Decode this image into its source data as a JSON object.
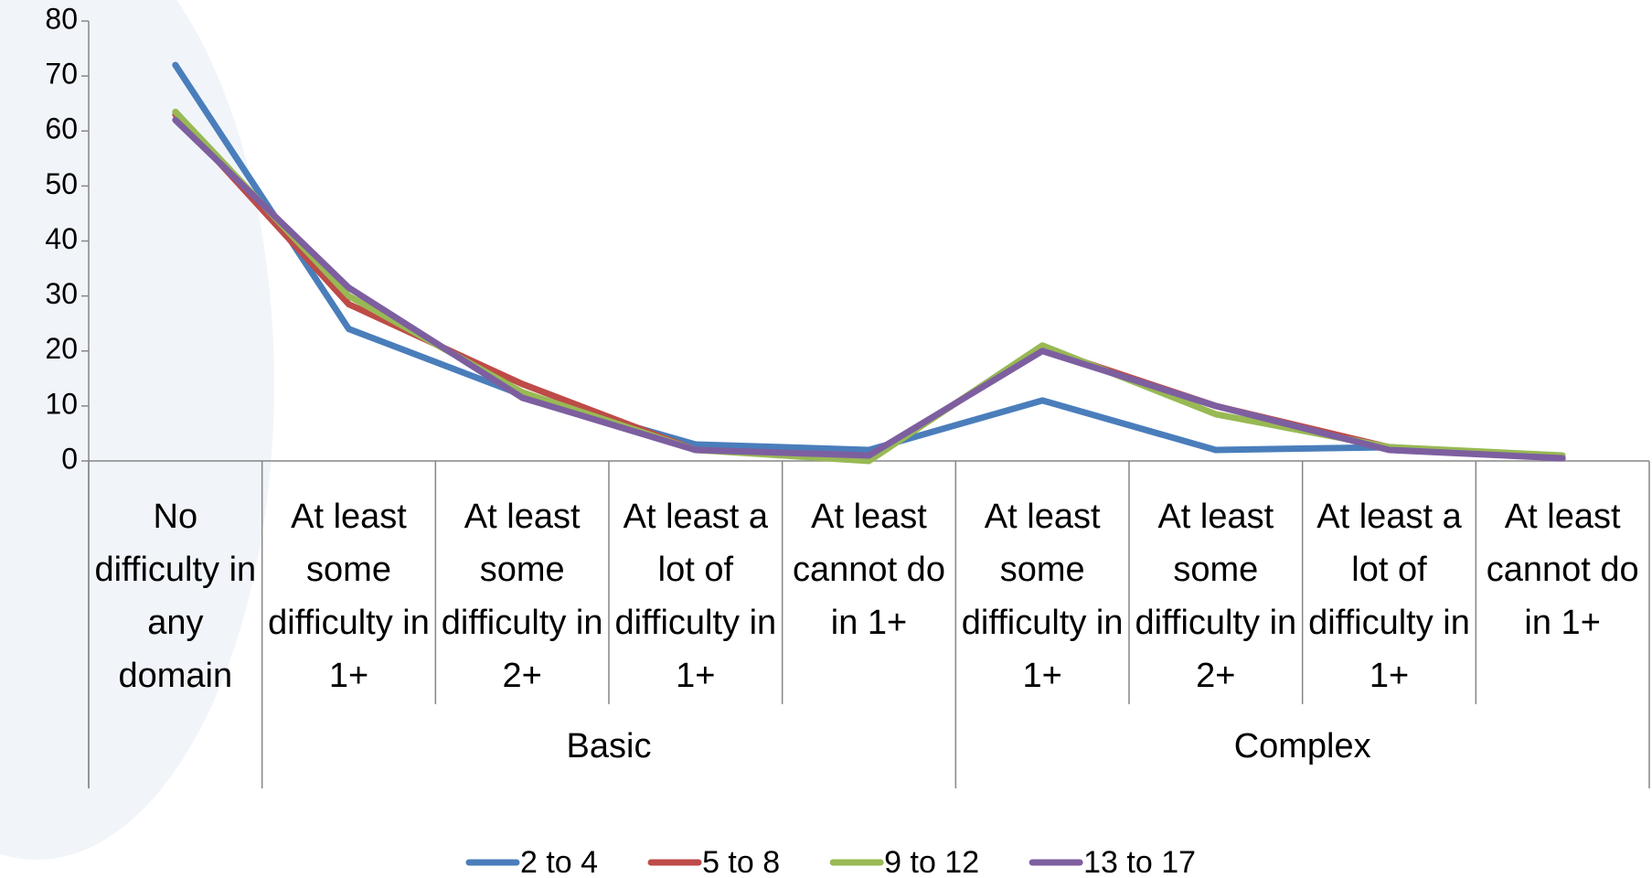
{
  "chart_data": {
    "type": "line",
    "categories": [
      "No difficulty in any domain",
      "At least some difficulty in 1+",
      "At least some difficulty in 2+",
      "At least a lot of difficulty in 1+",
      "At least cannot do in 1+",
      "At least some difficulty in 1+",
      "At least some difficulty in 2+",
      "At least a lot of difficulty in 1+",
      "At least cannot do in 1+"
    ],
    "groups": [
      {
        "name": null,
        "span": 1
      },
      {
        "name": "Basic",
        "span": 4
      },
      {
        "name": "Complex",
        "span": 4
      }
    ],
    "series": [
      {
        "name": "2 to 4",
        "color": "#4a7ebb",
        "values": [
          72,
          24,
          12,
          3,
          2,
          11,
          2,
          2.5,
          0.5
        ]
      },
      {
        "name": "5 to 8",
        "color": "#be4b48",
        "values": [
          63,
          28.5,
          14,
          2,
          0.5,
          20.5,
          10,
          2.5,
          0.5
        ]
      },
      {
        "name": "9 to 12",
        "color": "#98b954",
        "values": [
          63.5,
          30,
          12.5,
          2,
          0,
          21,
          8.5,
          2.5,
          1
        ]
      },
      {
        "name": "13 to 17",
        "color": "#7d5fa0",
        "values": [
          62,
          31.5,
          11.5,
          2,
          1,
          20,
          10,
          2,
          0.5
        ]
      }
    ],
    "ylim": [
      0,
      80
    ],
    "yticks": [
      0,
      10,
      20,
      30,
      40,
      50,
      60,
      70,
      80
    ],
    "legend": "bottom"
  }
}
